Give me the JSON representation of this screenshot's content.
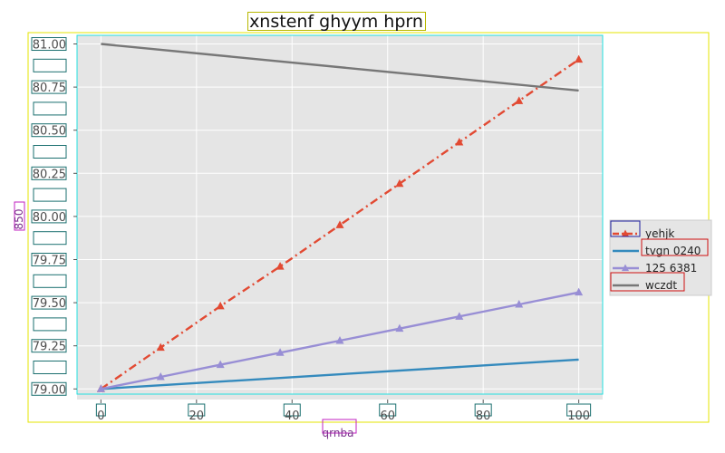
{
  "chart_data": {
    "type": "line",
    "title": "xnstenf ghyym hprn",
    "xlabel": "qrnba",
    "ylabel": "850",
    "xlim": [
      -5,
      105
    ],
    "ylim": [
      78.97,
      81.05
    ],
    "xticks": [
      0,
      20,
      40,
      60,
      80,
      100
    ],
    "xtick_labels": [
      "0",
      "20",
      "40",
      "60",
      "80",
      "100"
    ],
    "yticks": [
      79.0,
      79.25,
      79.5,
      79.75,
      80.0,
      80.25,
      80.5,
      80.75,
      81.0
    ],
    "ytick_labels": [
      "79.00",
      "79.25",
      "79.50",
      "79.75",
      "80.00",
      "80.25",
      "80.50",
      "80.75",
      "81.00"
    ],
    "grid": true,
    "legend_position": "right",
    "colors": {
      "plot_background": "#e5e5e5",
      "grid": "#ffffff"
    },
    "series": [
      {
        "name": "yehjk",
        "color": "#e24a33",
        "style": "dashdot",
        "marker": "triangle",
        "x": [
          0,
          12.5,
          25,
          37.5,
          50,
          62.5,
          75,
          87.5,
          100
        ],
        "y": [
          79.0,
          79.24,
          79.48,
          79.71,
          79.95,
          80.19,
          80.43,
          80.67,
          80.91
        ]
      },
      {
        "name": "tvgn 0240",
        "color": "#348abd",
        "style": "solid",
        "marker": "none",
        "x": [
          0,
          100
        ],
        "y": [
          79.0,
          79.17
        ]
      },
      {
        "name": "125 6381",
        "color": "#988ed5",
        "style": "solid",
        "marker": "triangle",
        "x": [
          0,
          12.5,
          25,
          37.5,
          50,
          62.5,
          75,
          87.5,
          100
        ],
        "y": [
          79.0,
          79.07,
          79.14,
          79.21,
          79.28,
          79.35,
          79.42,
          79.49,
          79.56
        ]
      },
      {
        "name": "wczdt",
        "color": "#777777",
        "style": "solid",
        "marker": "none",
        "x": [
          0,
          100
        ],
        "y": [
          81.0,
          80.73
        ]
      }
    ]
  }
}
